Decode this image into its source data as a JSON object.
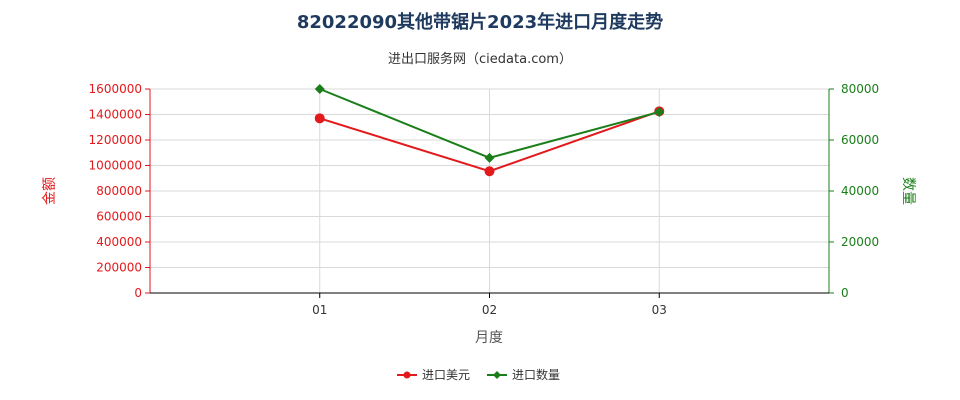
{
  "title": "82022090其他带锯片2023年进口月度走势",
  "subtitle": "进出口服务网（ciedata.com）",
  "chart_data": {
    "type": "line",
    "categories": [
      "01",
      "02",
      "03"
    ],
    "xlabel": "月度",
    "ylabel_left": "金额",
    "ylabel_right": "数量",
    "ylim_left": [
      0,
      1600000
    ],
    "ylim_right": [
      0,
      80000
    ],
    "yticks_left": [
      "0",
      "200000",
      "400000",
      "600000",
      "800000",
      "1000000",
      "1200000",
      "1400000",
      "1600000"
    ],
    "yticks_right": [
      "0",
      "20000",
      "40000",
      "60000",
      "80000"
    ],
    "grid": true,
    "legend_position": "bottom",
    "series": [
      {
        "name": "进口美元",
        "axis": "left",
        "color": "#e31a1c",
        "marker": "circle",
        "values": [
          1370000,
          955000,
          1425000
        ]
      },
      {
        "name": "进口数量",
        "axis": "right",
        "color": "#1a7f1a",
        "marker": "diamond",
        "values": [
          80000,
          53000,
          71000
        ]
      }
    ]
  }
}
